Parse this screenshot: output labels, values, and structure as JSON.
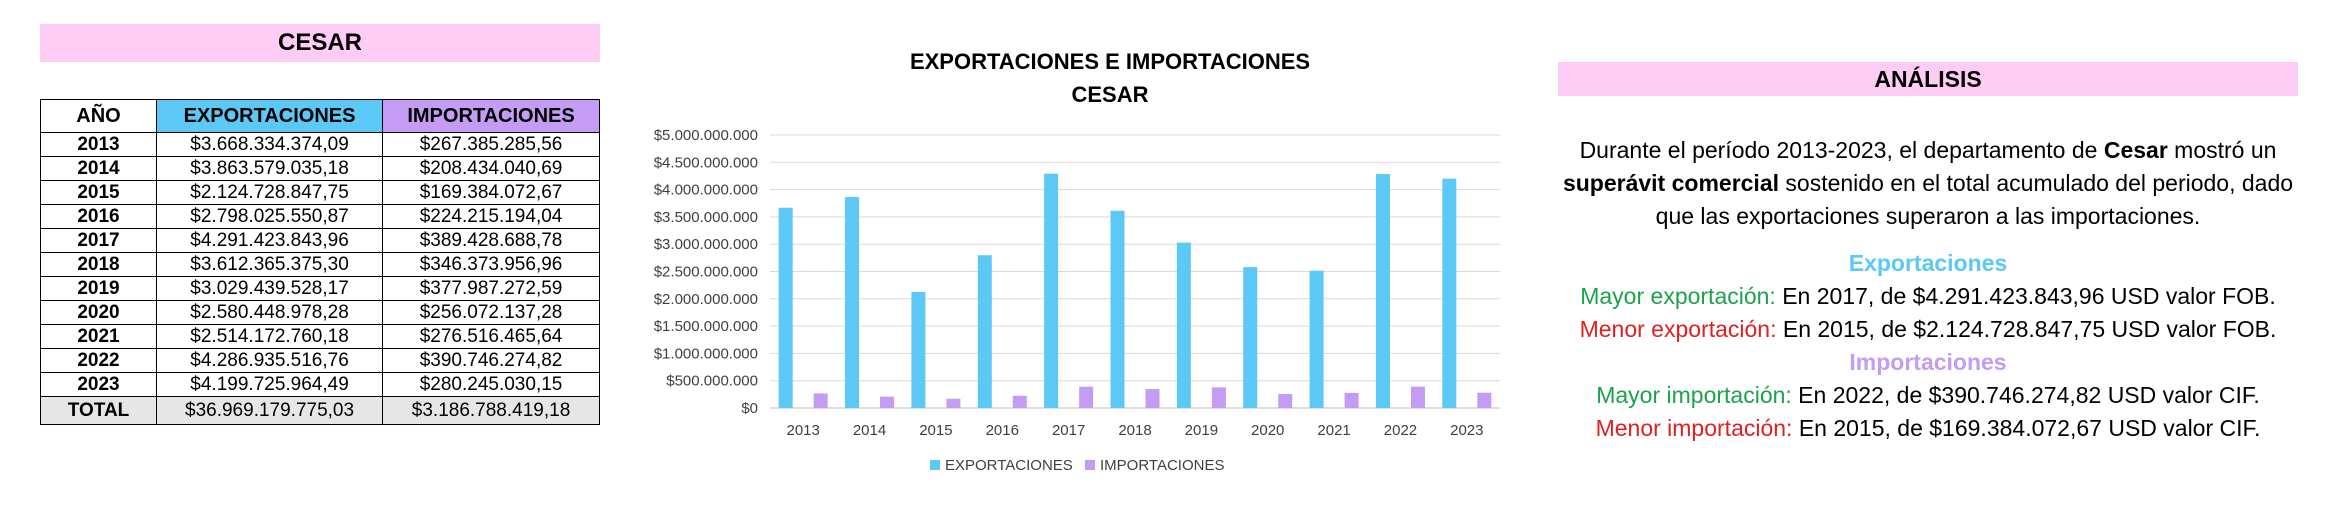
{
  "table": {
    "header": "CESAR",
    "columns": [
      "AÑO",
      "EXPORTACIONES",
      "IMPORTACIONES"
    ],
    "rows": [
      {
        "year": "2013",
        "exp": "$3.668.334.374,09",
        "imp": "$267.385.285,56"
      },
      {
        "year": "2014",
        "exp": "$3.863.579.035,18",
        "imp": "$208.434.040,69"
      },
      {
        "year": "2015",
        "exp": "$2.124.728.847,75",
        "imp": "$169.384.072,67"
      },
      {
        "year": "2016",
        "exp": "$2.798.025.550,87",
        "imp": "$224.215.194,04"
      },
      {
        "year": "2017",
        "exp": "$4.291.423.843,96",
        "imp": "$389.428.688,78"
      },
      {
        "year": "2018",
        "exp": "$3.612.365.375,30",
        "imp": "$346.373.956,96"
      },
      {
        "year": "2019",
        "exp": "$3.029.439.528,17",
        "imp": "$377.987.272,59"
      },
      {
        "year": "2020",
        "exp": "$2.580.448.978,28",
        "imp": "$256.072.137,28"
      },
      {
        "year": "2021",
        "exp": "$2.514.172.760,18",
        "imp": "$276.516.465,64"
      },
      {
        "year": "2022",
        "exp": "$4.286.935.516,76",
        "imp": "$390.746.274,82"
      },
      {
        "year": "2023",
        "exp": "$4.199.725.964,49",
        "imp": "$280.245.030,15"
      }
    ],
    "total": {
      "year": "TOTAL",
      "exp": "$36.969.179.775,03",
      "imp": "$3.186.788.419,18"
    }
  },
  "chart_data": {
    "type": "bar",
    "title": "EXPORTACIONES E IMPORTACIONES",
    "subtitle": "CESAR",
    "categories": [
      "2013",
      "2014",
      "2015",
      "2016",
      "2017",
      "2018",
      "2019",
      "2020",
      "2021",
      "2022",
      "2023"
    ],
    "series": [
      {
        "name": "EXPORTACIONES",
        "color": "#5bc8f5",
        "values": [
          3668334374.09,
          3863579035.18,
          2124728847.75,
          2798025550.87,
          4291423843.96,
          3612365375.3,
          3029439528.17,
          2580448978.28,
          2514172760.18,
          4286935516.76,
          4199725964.49
        ]
      },
      {
        "name": "IMPORTACIONES",
        "color": "#c49cf4",
        "values": [
          267385285.56,
          208434040.69,
          169384072.67,
          224215194.04,
          389428688.78,
          346373956.96,
          377987272.59,
          256072137.28,
          276516465.64,
          390746274.82,
          280245030.15
        ]
      }
    ],
    "ylim": [
      0,
      5000000000
    ],
    "yticks": [
      0,
      500000000,
      1000000000,
      1500000000,
      2000000000,
      2500000000,
      3000000000,
      3500000000,
      4000000000,
      4500000000,
      5000000000
    ],
    "ytick_labels": [
      "$0",
      "$500.000.000",
      "$1.000.000.000",
      "$1.500.000.000",
      "$2.000.000.000",
      "$2.500.000.000",
      "$3.000.000.000",
      "$3.500.000.000",
      "$4.000.000.000",
      "$4.500.000.000",
      "$5.000.000.000"
    ],
    "grid": true,
    "legend": "bottom"
  },
  "analysis": {
    "header": "ANÁLISIS",
    "p1_a": "Durante el período 2013-2023, el departamento de ",
    "p1_b": "Cesar",
    "p1_c": " mostró un",
    "p2_a": "superávit comercial",
    "p2_b": " sostenido en el total acumulado del periodo, dado",
    "p3": "que las exportaciones superaron a las importaciones.",
    "exp_title": "Exportaciones",
    "exp_max_label": "Mayor exportación:",
    "exp_max_text": " En 2017, de $4.291.423.843,96 USD valor FOB.",
    "exp_min_label": "Menor exportación:",
    "exp_min_text": " En 2015, de $2.124.728.847,75 USD valor FOB.",
    "imp_title": "Importaciones",
    "imp_max_label": "Mayor importación:",
    "imp_max_text": " En 2022, de $390.746.274,82 USD valor CIF.",
    "imp_min_label": "Menor importación:",
    "imp_min_text": " En 2015, de $169.384.072,67 USD valor CIF."
  }
}
